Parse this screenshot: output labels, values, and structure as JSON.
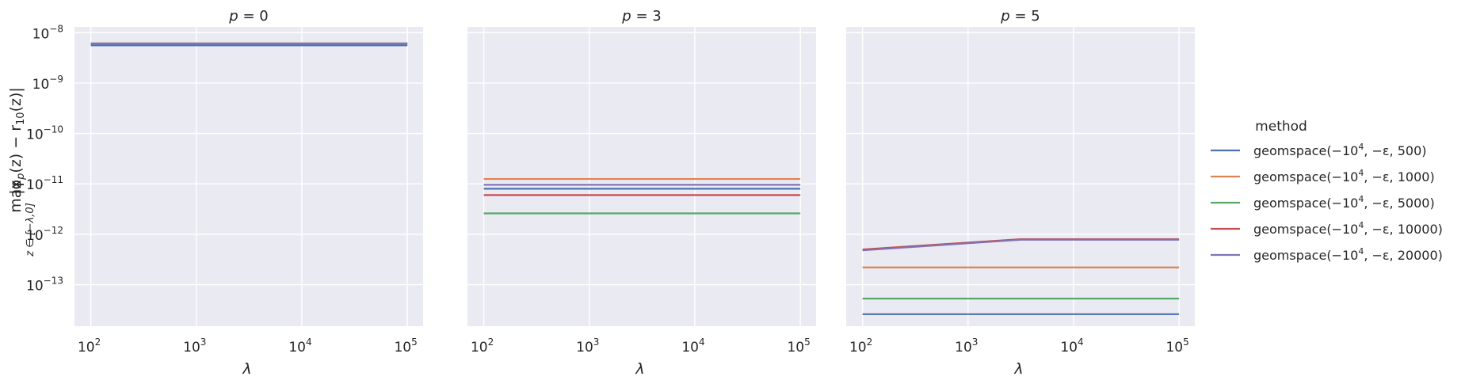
{
  "figure": {
    "ylabel_top": "max",
    "ylabel_sub": "z ∈ [−λ,0]",
    "ylabel_main": "|φ",
    "ylabel_p": "p",
    "ylabel_rest": "(z) − r",
    "ylabel_r_sub": "10",
    "ylabel_end": "(z)|",
    "xlabel": "λ"
  },
  "legend": {
    "title": "method",
    "placement": "right"
  },
  "chart_data": [
    {
      "type": "line",
      "title": "p = 0",
      "title_var": "p",
      "title_rest": " = 0",
      "xlabel": "λ",
      "xscale": "log",
      "yscale": "log",
      "xlim": [
        70,
        141000
      ],
      "ylim": [
        1.5e-14,
        1.3e-08
      ],
      "grid": true,
      "x": [
        100,
        3162,
        100000
      ],
      "series": [
        {
          "name": "geomspace(−10^4, −ε, 500)",
          "values": [
            5.6e-09,
            5.6e-09,
            5.6e-09
          ]
        },
        {
          "name": "geomspace(−10^4, −ε, 1000)",
          "values": [
            6.1e-09,
            6.1e-09,
            6.1e-09
          ]
        },
        {
          "name": "geomspace(−10^4, −ε, 5000)",
          "values": [
            6.1e-09,
            6.1e-09,
            6.1e-09
          ]
        },
        {
          "name": "geomspace(−10^4, −ε, 10000)",
          "values": [
            6.1e-09,
            6.1e-09,
            6.1e-09
          ]
        },
        {
          "name": "geomspace(−10^4, −ε, 20000)",
          "values": [
            6.1e-09,
            6.1e-09,
            6.1e-09
          ]
        }
      ]
    },
    {
      "type": "line",
      "title": "p = 3",
      "title_var": "p",
      "title_rest": " = 3",
      "xlabel": "λ",
      "xscale": "log",
      "yscale": "log",
      "xlim": [
        70,
        141000
      ],
      "ylim": [
        1.5e-14,
        1.3e-08
      ],
      "grid": true,
      "x": [
        100,
        3162,
        100000
      ],
      "series": [
        {
          "name": "geomspace(−10^4, −ε, 500)",
          "values": [
            8e-12,
            8e-12,
            8e-12
          ]
        },
        {
          "name": "geomspace(−10^4, −ε, 1000)",
          "values": [
            1.25e-11,
            1.25e-11,
            1.25e-11
          ]
        },
        {
          "name": "geomspace(−10^4, −ε, 5000)",
          "values": [
            2.6e-12,
            2.6e-12,
            2.6e-12
          ]
        },
        {
          "name": "geomspace(−10^4, −ε, 10000)",
          "values": [
            6e-12,
            6e-12,
            6e-12
          ]
        },
        {
          "name": "geomspace(−10^4, −ε, 20000)",
          "values": [
            9.6e-12,
            9.6e-12,
            9.6e-12
          ]
        }
      ]
    },
    {
      "type": "line",
      "title": "p = 5",
      "title_var": "p",
      "title_rest": " = 5",
      "xlabel": "λ",
      "xscale": "log",
      "yscale": "log",
      "xlim": [
        70,
        141000
      ],
      "ylim": [
        1.5e-14,
        1.3e-08
      ],
      "grid": true,
      "x": [
        100,
        3162,
        100000
      ],
      "series": [
        {
          "name": "geomspace(−10^4, −ε, 500)",
          "values": [
            2.6e-14,
            2.6e-14,
            2.6e-14
          ]
        },
        {
          "name": "geomspace(−10^4, −ε, 1000)",
          "values": [
            2.2e-13,
            2.2e-13,
            2.2e-13
          ]
        },
        {
          "name": "geomspace(−10^4, −ε, 5000)",
          "values": [
            5.3e-14,
            5.3e-14,
            5.3e-14
          ]
        },
        {
          "name": "geomspace(−10^4, −ε, 10000)",
          "values": [
            5e-13,
            8e-13,
            8e-13
          ]
        },
        {
          "name": "geomspace(−10^4, −ε, 20000)",
          "values": [
            4.8e-13,
            7.8e-13,
            7.8e-13
          ]
        }
      ]
    }
  ],
  "x_ticks": [
    {
      "base": "10",
      "exp": "2",
      "value": 100
    },
    {
      "base": "10",
      "exp": "3",
      "value": 1000
    },
    {
      "base": "10",
      "exp": "4",
      "value": 10000
    },
    {
      "base": "10",
      "exp": "5",
      "value": 100000
    }
  ],
  "y_ticks": [
    {
      "base": "10",
      "exp": "−8",
      "value": 1e-08
    },
    {
      "base": "10",
      "exp": "−9",
      "value": 1e-09
    },
    {
      "base": "10",
      "exp": "−10",
      "value": 1e-10
    },
    {
      "base": "10",
      "exp": "−11",
      "value": 1e-11
    },
    {
      "base": "10",
      "exp": "−12",
      "value": 1e-12
    },
    {
      "base": "10",
      "exp": "−13",
      "value": 1e-13
    }
  ],
  "legend_entries": [
    {
      "pre": "geomspace(−10",
      "exp": "4",
      "post": ", −ε, 500)"
    },
    {
      "pre": "geomspace(−10",
      "exp": "4",
      "post": ", −ε, 1000)"
    },
    {
      "pre": "geomspace(−10",
      "exp": "4",
      "post": ", −ε, 5000)"
    },
    {
      "pre": "geomspace(−10",
      "exp": "4",
      "post": ", −ε, 10000)"
    },
    {
      "pre": "geomspace(−10",
      "exp": "4",
      "post": ", −ε, 20000)"
    }
  ],
  "colors": {
    "background": "#eaeaf2",
    "grid": "#ffffff",
    "series": [
      "#4c72b0",
      "#dd8452",
      "#55a868",
      "#c44e52",
      "#8172b3"
    ]
  }
}
